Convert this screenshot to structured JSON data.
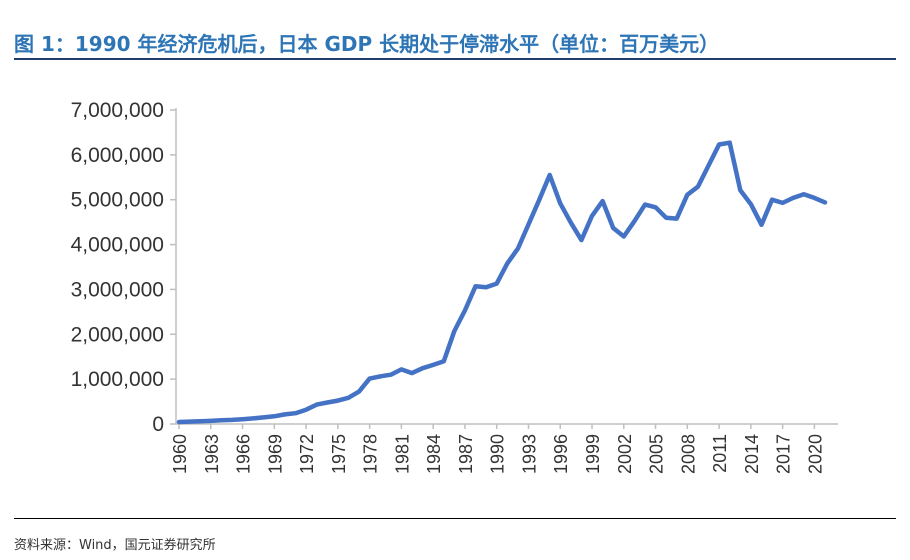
{
  "header": {
    "title": "图 1：1990 年经济危机后，日本 GDP 长期处于停滞水平（单位：百万美元）"
  },
  "footer": {
    "source": "资料来源：Wind，国元证券研究所"
  },
  "colors": {
    "title": "#2e75b6",
    "line": "#4472c4",
    "axis": "#bfbfbf",
    "rule": "#1f3e6b"
  },
  "chart_data": {
    "type": "line",
    "title": "",
    "xlabel": "",
    "ylabel": "",
    "ylim": [
      0,
      7000000
    ],
    "yticks": [
      0,
      1000000,
      2000000,
      3000000,
      4000000,
      5000000,
      6000000,
      7000000
    ],
    "ytick_labels": [
      "0",
      "1,000,000",
      "2,000,000",
      "3,000,000",
      "4,000,000",
      "5,000,000",
      "6,000,000",
      "7,000,000"
    ],
    "xtick_labels": [
      "1960",
      "1963",
      "1966",
      "1969",
      "1972",
      "1975",
      "1978",
      "1981",
      "1984",
      "1987",
      "1990",
      "1993",
      "1996",
      "1999",
      "2002",
      "2005",
      "2008",
      "2011",
      "2014",
      "2017",
      "2020"
    ],
    "grid": false,
    "legend": "none",
    "series": [
      {
        "x": [
          1960,
          1961,
          1962,
          1963,
          1964,
          1965,
          1966,
          1967,
          1968,
          1969,
          1970,
          1971,
          1972,
          1973,
          1974,
          1975,
          1976,
          1977,
          1978,
          1979,
          1980,
          1981,
          1982,
          1983,
          1984,
          1985,
          1986,
          1987,
          1988,
          1989,
          1990,
          1991,
          1992,
          1993,
          1994,
          1995,
          1996,
          1997,
          1998,
          1999,
          2000,
          2001,
          2002,
          2003,
          2004,
          2005,
          2006,
          2007,
          2008,
          2009,
          2010,
          2011,
          2012,
          2013,
          2014,
          2015,
          2016,
          2017,
          2018,
          2019,
          2020,
          2021
        ],
        "values": [
          44000,
          53000,
          61000,
          70000,
          82000,
          91000,
          106000,
          124000,
          147000,
          172000,
          213000,
          240000,
          319000,
          432000,
          480000,
          522000,
          583000,
          722000,
          1012000,
          1061000,
          1100000,
          1218000,
          1135000,
          1244000,
          1318000,
          1398000,
          2070000,
          2530000,
          3070000,
          3050000,
          3130000,
          3580000,
          3910000,
          4450000,
          4990000,
          5550000,
          4920000,
          4490000,
          4100000,
          4640000,
          4970000,
          4370000,
          4180000,
          4520000,
          4890000,
          4830000,
          4600000,
          4580000,
          5110000,
          5290000,
          5760000,
          6230000,
          6270000,
          5210000,
          4900000,
          4440000,
          5000000,
          4930000,
          5040000,
          5120000,
          5040000,
          4940000
        ]
      }
    ]
  }
}
